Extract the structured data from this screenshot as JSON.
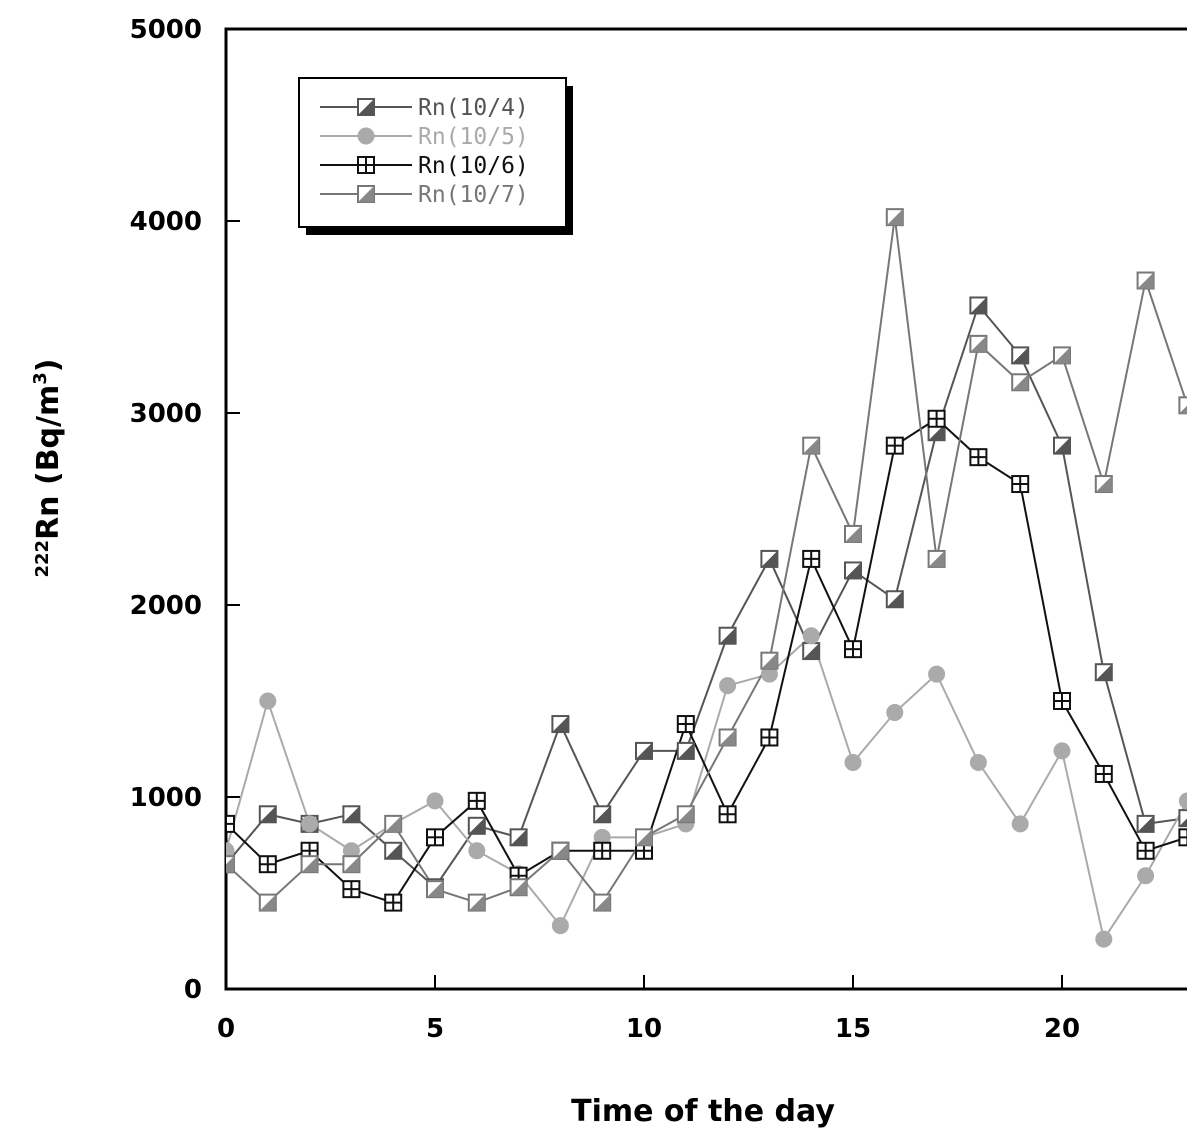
{
  "chart_data": {
    "type": "line",
    "title": "",
    "xlabel": "Time of the day",
    "ylabel": {
      "superscript": "222",
      "main": "Rn (Bq/m",
      "unit_superscript": "3",
      "close": ")"
    },
    "xlim": [
      0,
      23
    ],
    "ylim": [
      0,
      5000
    ],
    "xticks": [
      0,
      5,
      10,
      15,
      20
    ],
    "yticks": [
      0,
      1000,
      2000,
      3000,
      4000,
      5000
    ],
    "grid": false,
    "legend_position": "top-left",
    "x": [
      0,
      1,
      2,
      3,
      4,
      5,
      6,
      7,
      8,
      9,
      10,
      11,
      12,
      13,
      14,
      15,
      16,
      17,
      18,
      19,
      20,
      21,
      22,
      23
    ],
    "series": [
      {
        "name": "Rn(10/4)",
        "color": "#555555",
        "marker": "half-square",
        "values": [
          650,
          910,
          860,
          910,
          720,
          530,
          850,
          790,
          1380,
          910,
          1240,
          1240,
          1840,
          2240,
          1760,
          2180,
          2030,
          2900,
          3560,
          3300,
          2830,
          1650,
          860,
          890
        ]
      },
      {
        "name": "Rn(10/5)",
        "color": "#aaaaaa",
        "marker": "circle",
        "values": [
          720,
          1500,
          860,
          720,
          860,
          980,
          720,
          600,
          330,
          790,
          790,
          860,
          1580,
          1640,
          1840,
          1180,
          1440,
          1640,
          1180,
          860,
          1240,
          260,
          590,
          980
        ]
      },
      {
        "name": "Rn(10/6)",
        "color": "#111111",
        "marker": "square-cross",
        "values": [
          860,
          650,
          720,
          520,
          450,
          790,
          980,
          590,
          720,
          720,
          720,
          1380,
          910,
          1310,
          2240,
          1770,
          2830,
          2970,
          2770,
          2630,
          1500,
          1120,
          720,
          790
        ]
      },
      {
        "name": "Rn(10/7)",
        "color": "#777777",
        "marker": "half-square-light",
        "values": [
          650,
          450,
          650,
          650,
          860,
          520,
          450,
          530,
          720,
          450,
          790,
          910,
          1310,
          1710,
          2830,
          2370,
          4020,
          2240,
          3360,
          3160,
          3300,
          2630,
          3690,
          3040
        ]
      }
    ]
  }
}
